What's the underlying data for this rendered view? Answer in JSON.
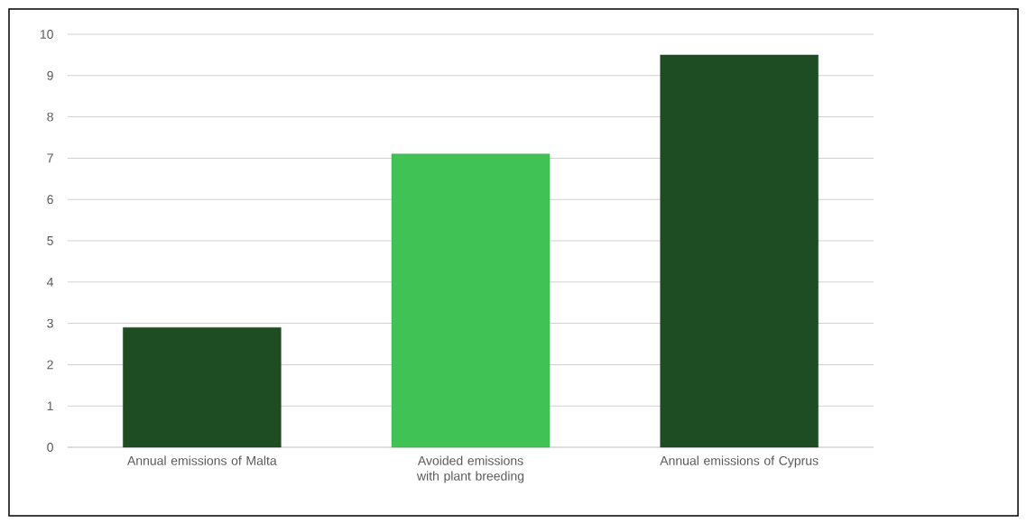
{
  "chart_data": {
    "type": "bar",
    "categories": [
      "Annual emissions of Malta",
      "Avoided emissions with plant breeding",
      "Annual emissions of Cyprus"
    ],
    "values": [
      2.9,
      7.1,
      9.5
    ],
    "colors": [
      "#1e4d24",
      "#41c254",
      "#1e4d24"
    ],
    "ylim": [
      0,
      10
    ],
    "yticks": [
      0,
      1,
      2,
      3,
      4,
      5,
      6,
      7,
      8,
      9,
      10
    ],
    "grid": "y"
  }
}
